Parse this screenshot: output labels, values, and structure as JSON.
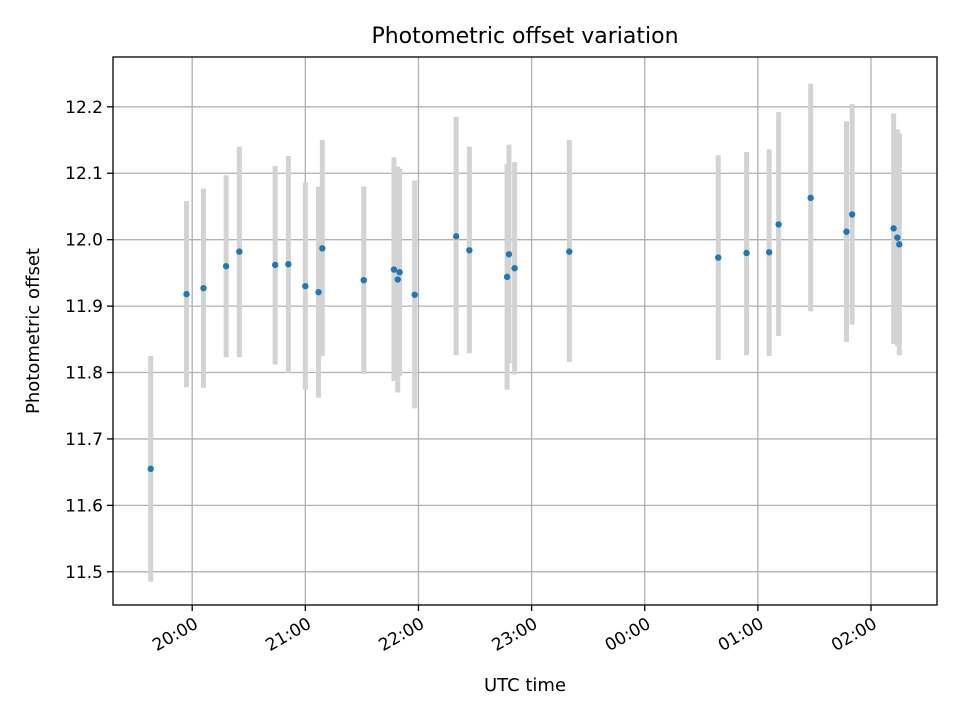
{
  "chart_data": {
    "type": "scatter",
    "title": "Photometric offset variation",
    "xlabel": "UTC time",
    "ylabel": "Photometric offset",
    "x_axis": "time",
    "xlim": [
      "19:18",
      "02:35"
    ],
    "ylim": [
      11.45,
      12.275
    ],
    "x_ticks": [
      "20:00",
      "21:00",
      "22:00",
      "23:00",
      "00:00",
      "01:00",
      "02:00"
    ],
    "y_ticks": [
      11.5,
      11.6,
      11.7,
      11.8,
      11.9,
      12.0,
      12.1,
      12.2
    ],
    "y_tick_labels": [
      "11.5",
      "11.6",
      "11.7",
      "11.8",
      "11.9",
      "12.0",
      "12.1",
      "12.2"
    ],
    "grid": true,
    "legend": "none",
    "colors": {
      "point": "#1f77b4",
      "error_bar": "#d3d3d3",
      "grid": "#b0b0b0"
    },
    "points": [
      {
        "t": "19:38",
        "y": 11.655,
        "lo": 11.485,
        "hi": 11.825
      },
      {
        "t": "19:57",
        "y": 11.918,
        "lo": 11.778,
        "hi": 12.058
      },
      {
        "t": "20:06",
        "y": 11.927,
        "lo": 11.777,
        "hi": 12.077
      },
      {
        "t": "20:18",
        "y": 11.96,
        "lo": 11.823,
        "hi": 12.097
      },
      {
        "t": "20:25",
        "y": 11.982,
        "lo": 11.823,
        "hi": 12.14
      },
      {
        "t": "20:44",
        "y": 11.962,
        "lo": 11.812,
        "hi": 12.111
      },
      {
        "t": "20:51",
        "y": 11.963,
        "lo": 11.799,
        "hi": 12.126
      },
      {
        "t": "21:00",
        "y": 11.93,
        "lo": 11.774,
        "hi": 12.086
      },
      {
        "t": "21:07",
        "y": 11.921,
        "lo": 11.762,
        "hi": 12.08
      },
      {
        "t": "21:09",
        "y": 11.987,
        "lo": 11.825,
        "hi": 12.15
      },
      {
        "t": "21:31",
        "y": 11.939,
        "lo": 11.798,
        "hi": 12.08
      },
      {
        "t": "21:47",
        "y": 11.955,
        "lo": 11.787,
        "hi": 12.124
      },
      {
        "t": "21:49",
        "y": 11.94,
        "lo": 11.77,
        "hi": 12.11
      },
      {
        "t": "21:50",
        "y": 11.951,
        "lo": 11.795,
        "hi": 12.107
      },
      {
        "t": "21:58",
        "y": 11.917,
        "lo": 11.746,
        "hi": 12.089
      },
      {
        "t": "22:20",
        "y": 12.005,
        "lo": 11.826,
        "hi": 12.185
      },
      {
        "t": "22:27",
        "y": 11.984,
        "lo": 11.829,
        "hi": 12.14
      },
      {
        "t": "22:47",
        "y": 11.944,
        "lo": 11.774,
        "hi": 12.114
      },
      {
        "t": "22:48",
        "y": 11.978,
        "lo": 11.814,
        "hi": 12.143
      },
      {
        "t": "22:51",
        "y": 11.957,
        "lo": 11.797,
        "hi": 12.117
      },
      {
        "t": "23:20",
        "y": 11.982,
        "lo": 11.816,
        "hi": 12.15
      },
      {
        "t": "00:39",
        "y": 11.973,
        "lo": 11.819,
        "hi": 12.127
      },
      {
        "t": "00:54",
        "y": 11.98,
        "lo": 11.826,
        "hi": 12.132
      },
      {
        "t": "01:06",
        "y": 11.981,
        "lo": 11.825,
        "hi": 12.136
      },
      {
        "t": "01:11",
        "y": 12.023,
        "lo": 11.855,
        "hi": 12.192
      },
      {
        "t": "01:28",
        "y": 12.063,
        "lo": 11.892,
        "hi": 12.235
      },
      {
        "t": "01:47",
        "y": 12.012,
        "lo": 11.846,
        "hi": 12.178
      },
      {
        "t": "01:50",
        "y": 12.038,
        "lo": 11.872,
        "hi": 12.204
      },
      {
        "t": "02:12",
        "y": 12.017,
        "lo": 11.843,
        "hi": 12.19
      },
      {
        "t": "02:14",
        "y": 12.003,
        "lo": 11.84,
        "hi": 12.166
      },
      {
        "t": "02:15",
        "y": 11.993,
        "lo": 11.826,
        "hi": 12.16
      }
    ]
  }
}
